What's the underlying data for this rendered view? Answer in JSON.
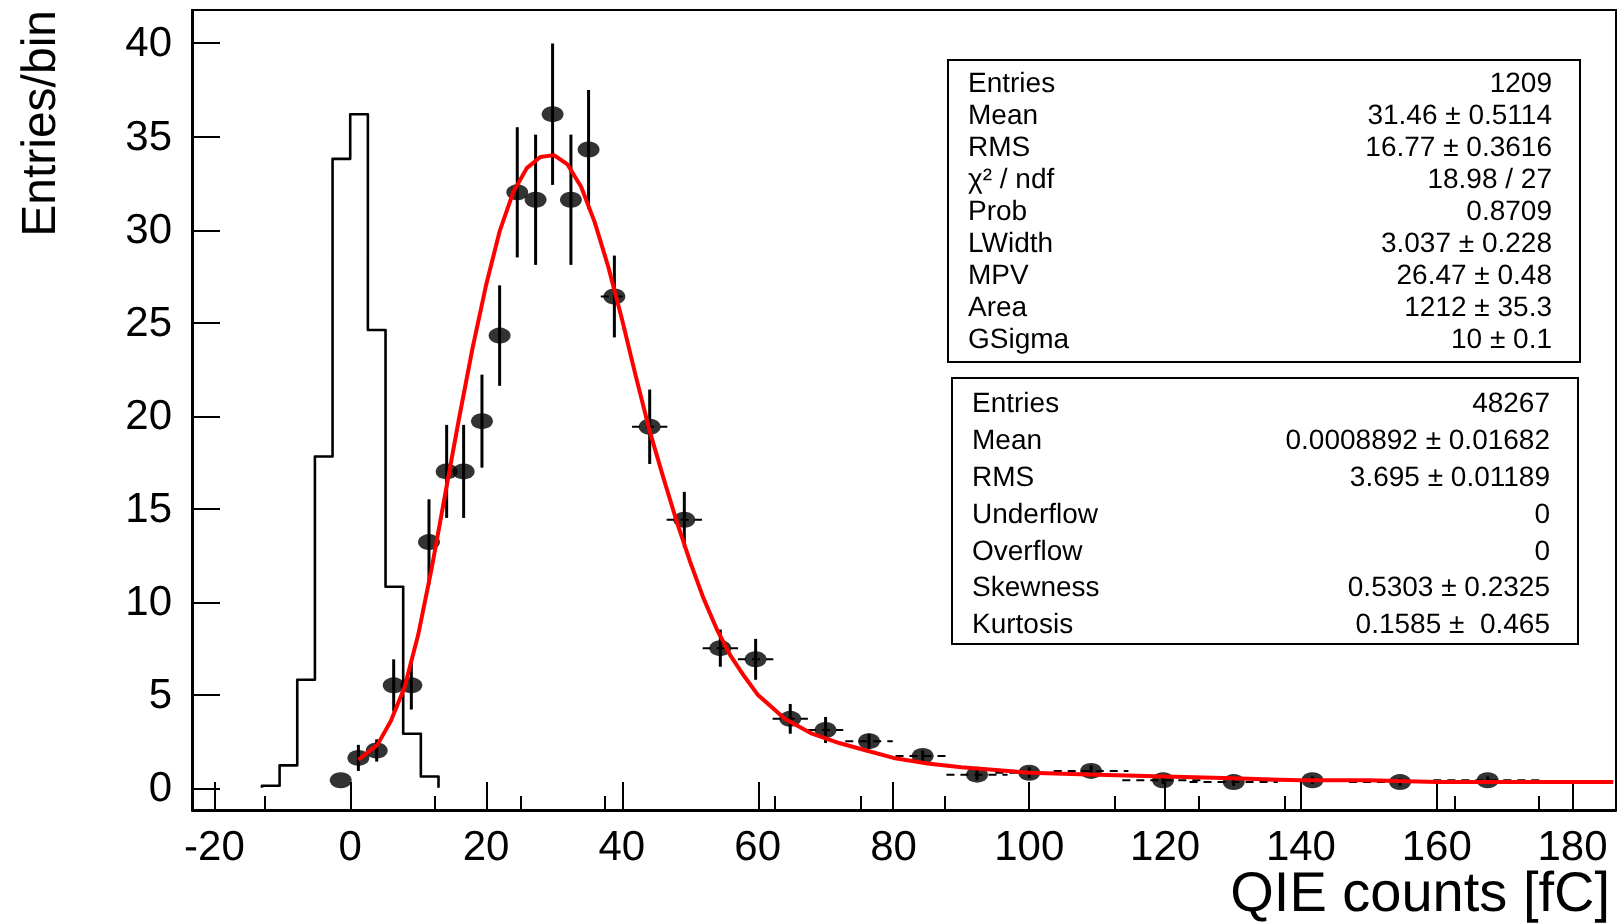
{
  "chart_data": {
    "type": "scatter",
    "xlabel": "QIE counts [fC]",
    "ylabel": "Entries/bin",
    "xlim": [
      -23.3,
      186.4
    ],
    "ylim": [
      -1.2,
      41.8
    ],
    "xticks": [
      -20,
      0,
      20,
      40,
      60,
      80,
      100,
      120,
      140,
      160,
      180
    ],
    "yticks": [
      0,
      5,
      10,
      15,
      20,
      25,
      30,
      35,
      40
    ],
    "grid": false,
    "marker": "circle",
    "series": [
      {
        "type": "histogram",
        "color": "#000000",
        "bins": [
          -13,
          -10.4,
          -7.8,
          -5.2,
          -2.6,
          0,
          2.6,
          5.2,
          7.8,
          10.4,
          13
        ],
        "values": [
          0.1,
          1.2,
          5.8,
          17.8,
          33.8,
          36.2,
          24.6,
          10.8,
          2.9,
          0.6
        ]
      },
      {
        "color": "#000000",
        "x": [
          -1.4,
          1.2,
          3.9,
          6.4,
          9.0,
          11.6,
          14.2,
          16.7,
          19.4,
          22.0,
          24.6,
          27.3,
          29.8,
          32.5,
          35.1,
          38.9,
          44.1,
          49.2,
          54.5,
          59.7,
          64.8,
          70.0,
          76.4,
          84.3,
          92.3,
          100.0,
          109.1,
          119.7,
          130.1,
          141.7,
          154.6,
          167.5
        ],
        "values": [
          0.4,
          1.6,
          2.0,
          5.5,
          5.5,
          13.2,
          17.0,
          17.0,
          19.7,
          24.3,
          32.0,
          31.6,
          36.2,
          31.6,
          34.3,
          26.4,
          19.4,
          14.4,
          7.5,
          6.9,
          3.7,
          3.1,
          2.5,
          1.7,
          0.7,
          0.8,
          0.9,
          0.4,
          0.3,
          0.4,
          0.3,
          0.4
        ],
        "errors": [
          null,
          0.7,
          0.6,
          1.4,
          1.3,
          2.3,
          2.5,
          2.5,
          2.5,
          2.7,
          3.5,
          3.5,
          3.8,
          3.5,
          3.2,
          2.2,
          2.0,
          1.5,
          1.0,
          1.1,
          0.8,
          0.7,
          0.4,
          0.3,
          0.3,
          0.3,
          0.3,
          0.2,
          0.2,
          0.2,
          0.2,
          0.2
        ],
        "xerrors": [
          null,
          null,
          null,
          null,
          null,
          null,
          null,
          null,
          null,
          null,
          null,
          null,
          null,
          null,
          null,
          2.0,
          2.6,
          2.6,
          2.6,
          2.6,
          2.6,
          2.6,
          3.5,
          4.0,
          4.5,
          5.0,
          5.5,
          6.0,
          6.5,
          7.0,
          7.5,
          8.0
        ]
      },
      {
        "type": "line",
        "color": "#ff0000",
        "marker": "none",
        "line_style": "solid",
        "x": [
          1.2,
          4,
          6,
          8,
          10,
          12,
          14,
          16,
          18,
          20,
          22,
          24,
          26,
          28,
          30,
          32,
          34,
          36,
          38,
          40,
          42,
          44,
          46,
          48,
          50,
          52,
          54,
          56,
          58,
          60,
          64,
          68,
          72,
          76,
          80,
          85,
          90,
          100,
          110,
          120,
          130,
          140,
          150,
          160,
          170,
          186
        ],
        "values": [
          1.5,
          2.3,
          3.6,
          5.4,
          8.2,
          11.8,
          15.8,
          19.8,
          23.6,
          27.0,
          29.9,
          32.0,
          33.3,
          33.9,
          34.0,
          33.5,
          32.3,
          30.4,
          28.0,
          25.2,
          22.2,
          19.3,
          16.8,
          14.4,
          12.2,
          10.2,
          8.5,
          7.1,
          6.0,
          5.0,
          3.7,
          2.9,
          2.4,
          2.0,
          1.6,
          1.3,
          1.1,
          0.8,
          0.7,
          0.6,
          0.5,
          0.4,
          0.4,
          0.3,
          0.3,
          0.3
        ]
      }
    ],
    "annotations": [
      "Entries  1209\nMean  31.46 ± 0.5114\nRMS  16.77 ± 0.3616\nχ² / ndf  18.98 / 27\nProb  0.8709\nLWidth  3.037 ± 0.228\nMPV  26.47 ± 0.48\nArea  1212 ± 35.3\nGSigma  10 ± 0.1",
      "Entries  48267\nMean  0.0008892 ± 0.01682\nRMS  3.695 ± 0.01189\nUnderflow  0\nOverflow  0\nSkewness  0.5303 ± 0.2325\nKurtosis  0.1585 ±  0.465"
    ]
  }
}
